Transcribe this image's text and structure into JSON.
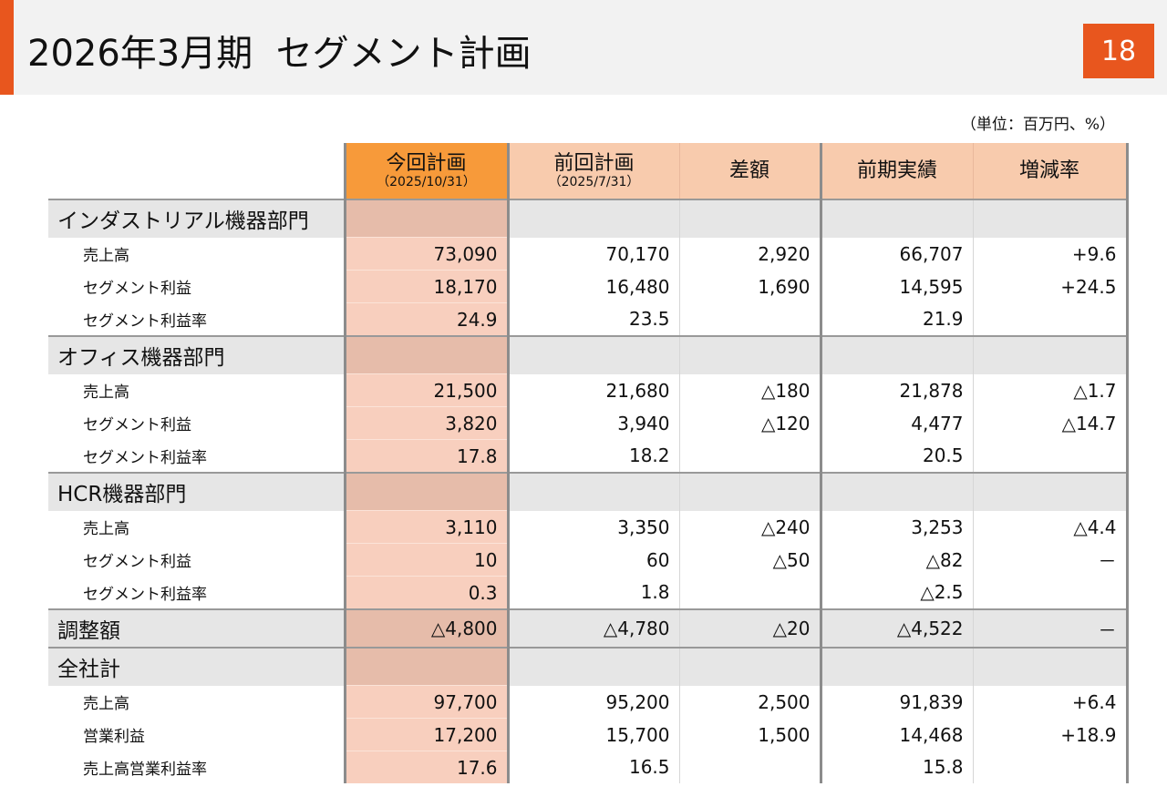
{
  "header": {
    "title": "2026年3月期  セグメント計画",
    "page_number": "18",
    "accent_color": "#e8561e"
  },
  "unit_note": "（単位：百万円、%）",
  "table": {
    "columns": [
      {
        "label": "今回計画",
        "sub": "（2025/10/31）"
      },
      {
        "label": "前回計画",
        "sub": "（2025/7/31）"
      },
      {
        "label": "差額",
        "sub": ""
      },
      {
        "label": "前期実績",
        "sub": ""
      },
      {
        "label": "増減率",
        "sub": ""
      }
    ],
    "sections": [
      {
        "name": "インダストリアル機器部門",
        "values": [
          "",
          "",
          "",
          "",
          ""
        ],
        "rows": [
          {
            "label": "売上高",
            "values": [
              "73,090",
              "70,170",
              "2,920",
              "66,707",
              "+9.6"
            ]
          },
          {
            "label": "セグメント利益",
            "values": [
              "18,170",
              "16,480",
              "1,690",
              "14,595",
              "+24.5"
            ]
          },
          {
            "label": "セグメント利益率",
            "values": [
              "24.9",
              "23.5",
              "",
              "21.9",
              ""
            ]
          }
        ]
      },
      {
        "name": "オフィス機器部門",
        "values": [
          "",
          "",
          "",
          "",
          ""
        ],
        "rows": [
          {
            "label": "売上高",
            "values": [
              "21,500",
              "21,680",
              "△180",
              "21,878",
              "△1.7"
            ]
          },
          {
            "label": "セグメント利益",
            "values": [
              "3,820",
              "3,940",
              "△120",
              "4,477",
              "△14.7"
            ]
          },
          {
            "label": "セグメント利益率",
            "values": [
              "17.8",
              "18.2",
              "",
              "20.5",
              ""
            ]
          }
        ]
      },
      {
        "name": "HCR機器部門",
        "values": [
          "",
          "",
          "",
          "",
          ""
        ],
        "rows": [
          {
            "label": "売上高",
            "values": [
              "3,110",
              "3,350",
              "△240",
              "3,253",
              "△4.4"
            ]
          },
          {
            "label": "セグメント利益",
            "values": [
              "10",
              "60",
              "△50",
              "△82",
              "－"
            ]
          },
          {
            "label": "セグメント利益率",
            "values": [
              "0.3",
              "1.8",
              "",
              "△2.5",
              ""
            ]
          }
        ]
      },
      {
        "name": "調整額",
        "values": [
          "△4,800",
          "△4,780",
          "△20",
          "△4,522",
          "－"
        ],
        "rows": []
      },
      {
        "name": "全社計",
        "values": [
          "",
          "",
          "",
          "",
          ""
        ],
        "rows": [
          {
            "label": "売上高",
            "values": [
              "97,700",
              "95,200",
              "2,500",
              "91,839",
              "+6.4"
            ]
          },
          {
            "label": "営業利益",
            "values": [
              "17,200",
              "15,700",
              "1,500",
              "14,468",
              "+18.9"
            ]
          },
          {
            "label": "売上高営業利益率",
            "values": [
              "17.6",
              "16.5",
              "",
              "15.8",
              ""
            ]
          }
        ]
      }
    ]
  }
}
